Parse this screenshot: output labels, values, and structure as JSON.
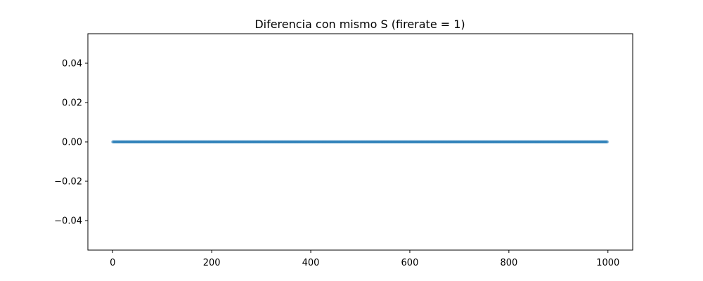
{
  "chart_data": {
    "type": "scatter",
    "title": "Diferencia con mismo S (firerate = 1)",
    "xlabel": "",
    "ylabel": "",
    "xlim": [
      -50,
      1050
    ],
    "ylim": [
      -0.055,
      0.055
    ],
    "x_ticks": [
      0,
      200,
      400,
      600,
      800,
      1000
    ],
    "x_tick_labels": [
      "0",
      "200",
      "400",
      "600",
      "800",
      "1000"
    ],
    "y_ticks": [
      -0.04,
      -0.02,
      0.0,
      0.02,
      0.04
    ],
    "y_tick_labels": [
      "−0.04",
      "−0.02",
      "0.00",
      "0.02",
      "0.04"
    ],
    "grid": false,
    "series": [
      {
        "color": "#1f77b4",
        "alpha": 0.35,
        "x_start": 0,
        "x_end": 999,
        "x_step": 1,
        "y_constant": 0.0
      }
    ]
  }
}
